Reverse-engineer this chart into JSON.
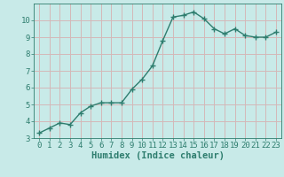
{
  "x": [
    0,
    1,
    2,
    3,
    4,
    5,
    6,
    7,
    8,
    9,
    10,
    11,
    12,
    13,
    14,
    15,
    16,
    17,
    18,
    19,
    20,
    21,
    22,
    23
  ],
  "y": [
    3.3,
    3.6,
    3.9,
    3.8,
    4.5,
    4.9,
    5.1,
    5.1,
    5.1,
    5.9,
    6.5,
    7.3,
    8.8,
    10.2,
    10.3,
    10.5,
    10.1,
    9.5,
    9.2,
    9.5,
    9.1,
    9.0,
    9.0,
    9.3
  ],
  "line_color": "#2e7d6e",
  "marker": "+",
  "marker_size": 4,
  "bg_color": "#c8eae8",
  "grid_color": "#d4b8b8",
  "xlabel": "Humidex (Indice chaleur)",
  "ylim": [
    3,
    11
  ],
  "xlim": [
    -0.5,
    23.5
  ],
  "yticks": [
    3,
    4,
    5,
    6,
    7,
    8,
    9,
    10
  ],
  "xticks": [
    0,
    1,
    2,
    3,
    4,
    5,
    6,
    7,
    8,
    9,
    10,
    11,
    12,
    13,
    14,
    15,
    16,
    17,
    18,
    19,
    20,
    21,
    22,
    23
  ],
  "tick_color": "#2e7d6e",
  "tick_fontsize": 6.5,
  "xlabel_fontsize": 7.5,
  "linewidth": 1.0,
  "marker_linewidth": 1.0
}
